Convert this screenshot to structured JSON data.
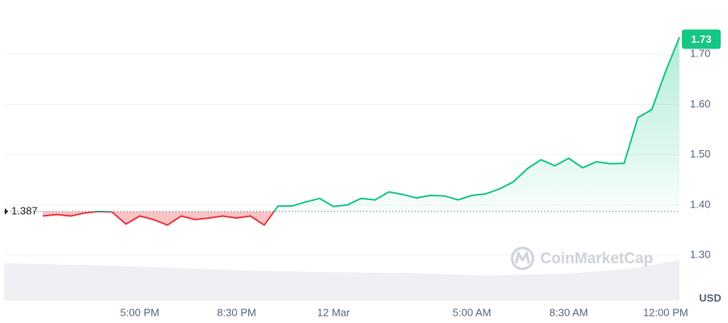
{
  "chart_data": {
    "type": "line",
    "categories": [
      null,
      null,
      null,
      null,
      null,
      null,
      null,
      "5:00 PM",
      null,
      null,
      null,
      null,
      null,
      null,
      "8:30 PM",
      null,
      null,
      null,
      null,
      null,
      null,
      "12 Mar",
      null,
      null,
      null,
      null,
      null,
      null,
      null,
      null,
      null,
      "5:00 AM",
      null,
      null,
      null,
      null,
      null,
      null,
      "8:30 AM",
      null,
      null,
      null,
      null,
      null,
      null,
      "12:00 PM",
      null
    ],
    "values": [
      1.378,
      1.381,
      1.378,
      1.384,
      1.387,
      1.386,
      1.362,
      1.378,
      1.371,
      1.36,
      1.378,
      1.371,
      1.374,
      1.378,
      1.374,
      1.378,
      1.36,
      1.398,
      1.398,
      1.406,
      1.413,
      1.397,
      1.4,
      1.413,
      1.41,
      1.426,
      1.421,
      1.414,
      1.419,
      1.418,
      1.41,
      1.419,
      1.422,
      1.432,
      1.446,
      1.472,
      1.49,
      1.478,
      1.493,
      1.474,
      1.486,
      1.482,
      1.483,
      1.574,
      1.59,
      1.666,
      1.734
    ],
    "ylim": [
      1.21,
      1.8
    ],
    "yticks": [
      {
        "value": 1.3,
        "label": "1.30"
      },
      {
        "value": 1.4,
        "label": "1.40"
      },
      {
        "value": 1.5,
        "label": "1.50"
      },
      {
        "value": 1.6,
        "label": "1.60"
      },
      {
        "value": 1.7,
        "label": "1.70"
      }
    ],
    "grid": true,
    "reference_price": 1.387,
    "current_price": 1.73,
    "currency": "USD",
    "watermark": "CoinMarketCap",
    "up_color": "#16c784",
    "down_color": "#ea3943"
  }
}
